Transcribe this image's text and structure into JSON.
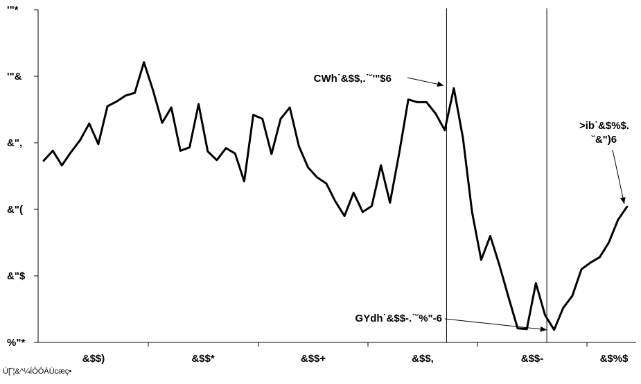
{
  "chart_data": {
    "type": "line",
    "title": "",
    "xlabel": "",
    "ylabel": "",
    "y_ticks": [
      "%\"*",
      "&\"$",
      "&\"(",
      "&\",",
      "'\"&",
      "'\"*"
    ],
    "x_ticks": [
      "&$$)",
      "&$$*",
      "&$$+",
      "&$$,",
      "&$$-",
      "&$%$"
    ],
    "ylim": [
      0,
      5
    ],
    "xlim": [
      0,
      65
    ],
    "grid": false,
    "legend": "none",
    "series": [
      {
        "color": "#000000",
        "x": [
          0,
          1,
          2,
          3,
          4,
          5,
          6,
          7,
          8,
          9,
          10,
          11,
          12,
          13,
          14,
          15,
          16,
          17,
          18,
          19,
          20,
          21,
          22,
          23,
          24,
          25,
          26,
          27,
          28,
          29,
          30,
          31,
          32,
          33,
          34,
          35,
          36,
          37,
          38,
          39,
          40,
          41,
          42,
          43,
          44,
          45,
          46,
          47,
          48,
          49,
          50,
          51,
          52,
          53,
          54,
          55,
          56,
          57,
          58,
          59,
          60,
          61,
          62,
          63,
          64
        ],
        "values": [
          2.73,
          2.88,
          2.66,
          2.86,
          3.04,
          3.29,
          2.98,
          3.55,
          3.62,
          3.71,
          3.75,
          4.21,
          3.79,
          3.3,
          3.53,
          2.88,
          2.93,
          3.58,
          2.87,
          2.74,
          2.92,
          2.84,
          2.42,
          3.42,
          3.36,
          2.83,
          3.36,
          3.53,
          2.95,
          2.63,
          2.48,
          2.39,
          2.12,
          1.9,
          2.25,
          1.96,
          2.05,
          2.66,
          2.1,
          2.84,
          3.65,
          3.61,
          3.61,
          3.44,
          3.19,
          3.82,
          3.07,
          1.96,
          1.24,
          1.6,
          1.16,
          0.68,
          0.21,
          0.2,
          0.89,
          0.41,
          0.19,
          0.52,
          0.7,
          1.1,
          1.2,
          1.28,
          1.5,
          1.84,
          2.04
        ]
      }
    ],
    "vlines": [
      44.2,
      55.2
    ],
    "annotations": [
      {
        "text": "CWh˙&$$,.˙˘'\"$6",
        "target_x": 44.2,
        "target_y": 3.82
      },
      {
        "text": "GYdh˙&$$-.˙˘%\"-6",
        "target_x": 55.2,
        "target_y": 0.21
      },
      {
        "text": ">ib˙&$%$.",
        "text2": "˘&\")6",
        "target_x": 64,
        "target_y": 2.04
      }
    ],
    "source": "Ù[˘¦&^¼ÍÔÔÀÙcæç•"
  },
  "colors": {
    "line": "#000000",
    "axis": "#000000",
    "background": "#ffffff"
  }
}
